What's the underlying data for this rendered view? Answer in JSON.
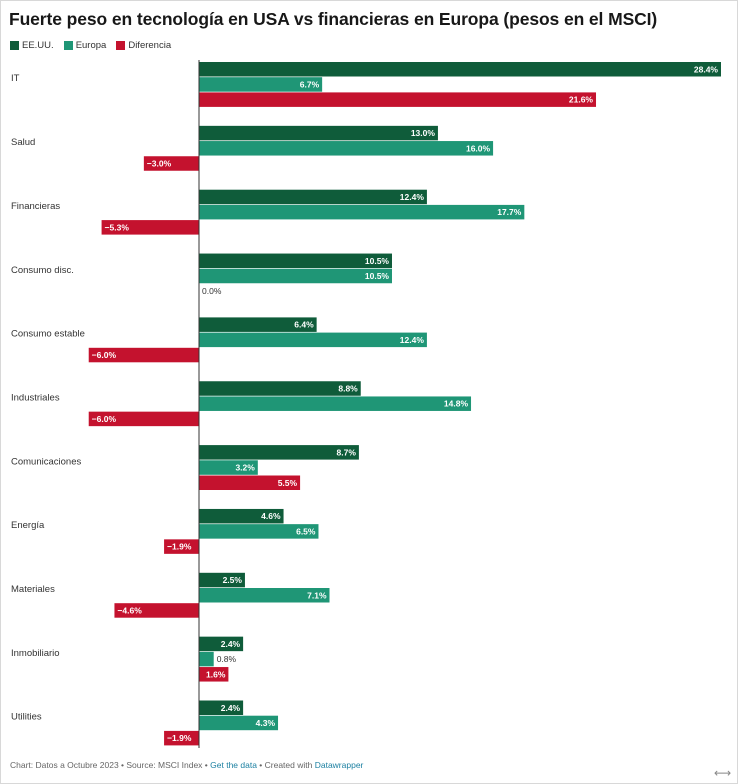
{
  "chart_data": {
    "type": "bar",
    "orientation": "horizontal",
    "title": "Fuerte peso en tecnología en USA vs financieras en Europa (pesos en el MSCI)",
    "categories": [
      "IT",
      "Salud",
      "Financieras",
      "Consumo disc.",
      "Consumo estable",
      "Industriales",
      "Comunicaciones",
      "Energía",
      "Materiales",
      "Inmobiliario",
      "Utilities"
    ],
    "series": [
      {
        "name": "EE.UU.",
        "color": "#0f5c3a",
        "values": [
          28.4,
          13.0,
          12.4,
          10.5,
          6.4,
          8.8,
          8.7,
          4.6,
          2.5,
          2.4,
          2.4
        ]
      },
      {
        "name": "Europa",
        "color": "#1f9676",
        "values": [
          6.7,
          16.0,
          17.7,
          10.5,
          12.4,
          14.8,
          3.2,
          6.5,
          7.1,
          0.8,
          4.3
        ]
      },
      {
        "name": "Diferencia",
        "color": "#c4122e",
        "values": [
          21.6,
          -3.0,
          -5.3,
          0.0,
          -6.0,
          -6.0,
          5.5,
          -1.9,
          -4.6,
          1.6,
          -1.9
        ]
      }
    ],
    "value_labels": [
      [
        "28.4%",
        "13.0%",
        "12.4%",
        "10.5%",
        "6.4%",
        "8.8%",
        "8.7%",
        "4.6%",
        "2.5%",
        "2.4%",
        "2.4%"
      ],
      [
        "6.7%",
        "16.0%",
        "17.7%",
        "10.5%",
        "12.4%",
        "14.8%",
        "3.2%",
        "6.5%",
        "7.1%",
        "0.8%",
        "4.3%"
      ],
      [
        "21.6%",
        "−3.0%",
        "−5.3%",
        "0.0%",
        "−6.0%",
        "−6.0%",
        "5.5%",
        "−1.9%",
        "−4.6%",
        "1.6%",
        "−1.9%"
      ]
    ],
    "xlim": [
      -8,
      28.4
    ],
    "legend_position": "top-left",
    "grid": false
  },
  "footer": {
    "prefix": "Chart: Datos a Octubre 2023 • Source: MSCI Index • ",
    "get_data": "Get the data",
    "middle": " • Created with ",
    "tool": "Datawrapper"
  },
  "resize_icon": "⟷"
}
